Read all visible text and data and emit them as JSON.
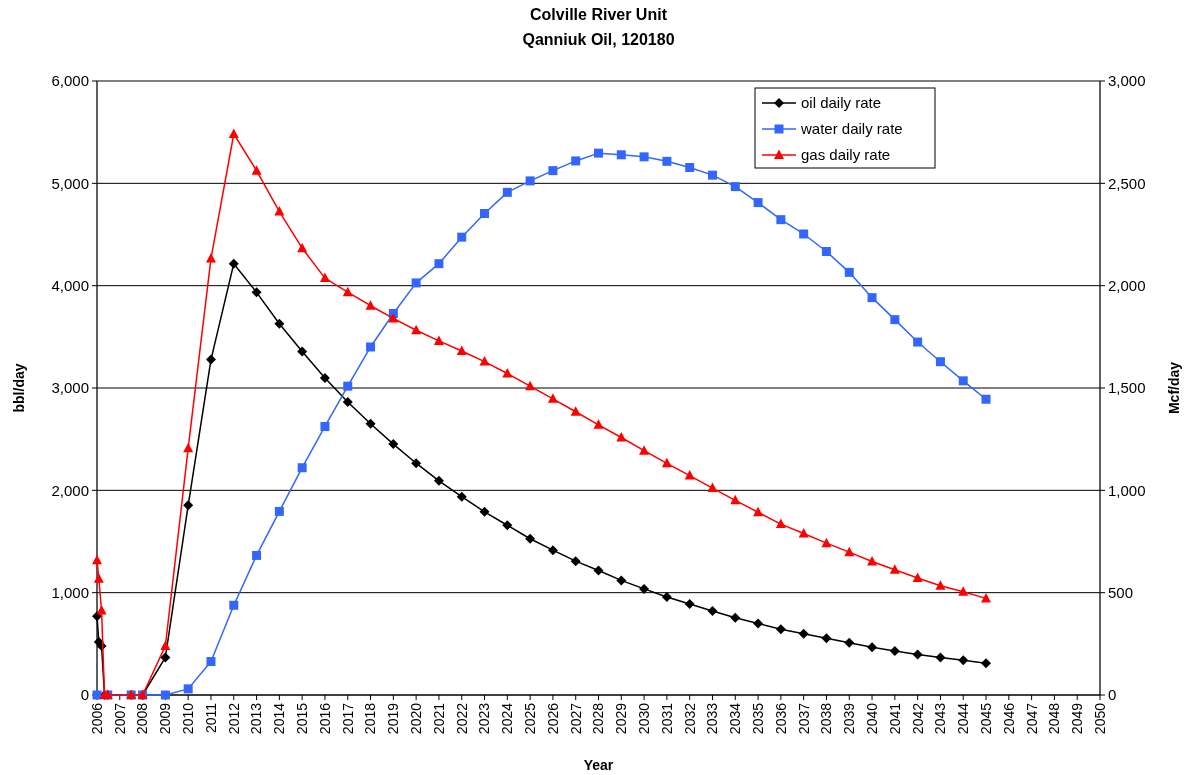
{
  "chart_data": {
    "type": "line",
    "title": "Colville River Unit",
    "subtitle": "Qanniuk Oil, 120180",
    "xlabel": "Year",
    "ylabel": "bbl/day",
    "y2label": "Mcf/day",
    "x": [
      2006,
      2006.08,
      2006.2,
      2006.33,
      2006.47,
      2007.5,
      2008,
      2009,
      2010,
      2011,
      2012,
      2013,
      2014,
      2015,
      2016,
      2017,
      2018,
      2019,
      2020,
      2021,
      2022,
      2023,
      2024,
      2025,
      2026,
      2027,
      2028,
      2029,
      2030,
      2031,
      2032,
      2033,
      2034,
      2035,
      2036,
      2037,
      2038,
      2039,
      2040,
      2041,
      2042,
      2043,
      2044,
      2045
    ],
    "series": [
      {
        "name": "oil daily rate",
        "color": "#000000",
        "marker": "diamond",
        "values": [
          770,
          518,
          478,
          0,
          0,
          0,
          0,
          367,
          1854,
          3278,
          4215,
          3935,
          3628,
          3357,
          3098,
          2863,
          2651,
          2452,
          2265,
          2093,
          1938,
          1790,
          1659,
          1527,
          1415,
          1308,
          1216,
          1120,
          1037,
          957,
          889,
          821,
          754,
          698,
          642,
          598,
          554,
          510,
          467,
          431,
          395,
          367,
          339,
          311
        ]
      },
      {
        "name": "water daily rate",
        "color": "#3366ff",
        "marker": "square",
        "values": [
          0,
          null,
          null,
          null,
          0,
          0,
          0,
          0,
          60,
          327,
          877,
          1364,
          1794,
          2221,
          2624,
          3018,
          3401,
          3728,
          4027,
          4215,
          4474,
          4705,
          4912,
          5024,
          5124,
          5219,
          5295,
          5279,
          5259,
          5215,
          5155,
          5080,
          4968,
          4812,
          4645,
          4505,
          4334,
          4130,
          3883,
          3668,
          3449,
          3257,
          3070,
          2890
        ]
      },
      {
        "name": "gas daily rate",
        "color": "#ff0000",
        "marker": "triangle",
        "axis": "y2",
        "values": [
          658,
          568,
          413,
          0,
          0,
          0,
          0,
          240,
          1206,
          2133,
          2741,
          2562,
          2362,
          2183,
          2037,
          1968,
          1902,
          1840,
          1782,
          1730,
          1681,
          1629,
          1571,
          1509,
          1447,
          1384,
          1320,
          1258,
          1194,
          1132,
          1072,
          1011,
          951,
          893,
          835,
          789,
          742,
          698,
          652,
          612,
          572,
          534,
          504,
          472
        ]
      }
    ],
    "xlim": [
      2006,
      2050
    ],
    "xticks": [
      2006,
      2007,
      2008,
      2009,
      2010,
      2011,
      2012,
      2013,
      2014,
      2015,
      2016,
      2017,
      2018,
      2019,
      2020,
      2021,
      2022,
      2023,
      2024,
      2025,
      2026,
      2027,
      2028,
      2029,
      2030,
      2031,
      2032,
      2033,
      2034,
      2035,
      2036,
      2037,
      2038,
      2039,
      2040,
      2041,
      2042,
      2043,
      2044,
      2045,
      2046,
      2047,
      2048,
      2049,
      2050
    ],
    "ylim": [
      0,
      6000
    ],
    "yticks": [
      0,
      {
        "value": 1000,
        "label": "1,000"
      },
      {
        "value": 2000,
        "label": "2,000"
      },
      {
        "value": 3000,
        "label": "3,000"
      },
      {
        "value": 4000,
        "label": "4,000"
      },
      {
        "value": 5000,
        "label": "5,000"
      },
      {
        "value": 6000,
        "label": "6,000"
      }
    ],
    "y2lim": [
      0,
      3000
    ],
    "y2ticks": [
      0,
      500,
      {
        "value": 1000,
        "label": "1,000"
      },
      {
        "value": 1500,
        "label": "1,500"
      },
      {
        "value": 2000,
        "label": "2,000"
      },
      {
        "value": 2500,
        "label": "2,500"
      },
      {
        "value": 3000,
        "label": "3,000"
      }
    ],
    "grid": "y",
    "legend": "top right",
    "line_style": "solid"
  }
}
